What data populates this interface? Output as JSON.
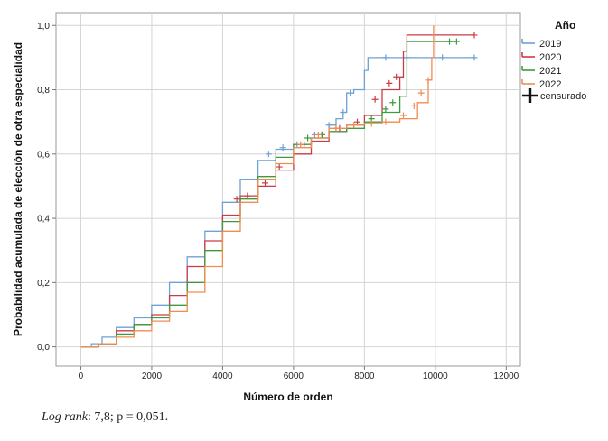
{
  "chart_data": {
    "type": "line",
    "step": true,
    "xlabel": "Número de orden",
    "ylabel": "Probabilidad acumulada de elección de otra especialidad",
    "xlim": [
      -700,
      12400
    ],
    "ylim": [
      -0.06,
      1.04
    ],
    "x_ticks": [
      0,
      2000,
      4000,
      6000,
      8000,
      10000,
      12000
    ],
    "x_tick_labels": [
      "0",
      "2000",
      "4000",
      "6000",
      "8000",
      "10000",
      "12000"
    ],
    "y_ticks": [
      0.0,
      0.2,
      0.4,
      0.6,
      0.8,
      1.0
    ],
    "y_tick_labels": [
      "0,0",
      "0,2",
      "0,4",
      "0,6",
      "0,8",
      "1,0"
    ],
    "grid": true,
    "legend": {
      "title": "Año",
      "placement": "top-right",
      "censored_label": "censurado"
    },
    "series": [
      {
        "name": "2019",
        "color": "#6fa0d6",
        "x": [
          0,
          300,
          600,
          1000,
          1500,
          2000,
          2500,
          3000,
          3500,
          4000,
          4500,
          5000,
          5500,
          6000,
          6500,
          7000,
          7200,
          7400,
          7500,
          7700,
          8000,
          8100,
          11100
        ],
        "y": [
          0.0,
          0.01,
          0.03,
          0.06,
          0.09,
          0.13,
          0.2,
          0.28,
          0.36,
          0.45,
          0.52,
          0.58,
          0.615,
          0.63,
          0.65,
          0.69,
          0.71,
          0.73,
          0.79,
          0.8,
          0.86,
          0.9,
          0.9
        ],
        "censored": [
          {
            "x": 5300,
            "y": 0.6
          },
          {
            "x": 5700,
            "y": 0.62
          },
          {
            "x": 6100,
            "y": 0.63
          },
          {
            "x": 6600,
            "y": 0.66
          },
          {
            "x": 7000,
            "y": 0.69
          },
          {
            "x": 7400,
            "y": 0.73
          },
          {
            "x": 7600,
            "y": 0.79
          },
          {
            "x": 8600,
            "y": 0.9
          },
          {
            "x": 9200,
            "y": 0.9
          },
          {
            "x": 10200,
            "y": 0.9
          },
          {
            "x": 11100,
            "y": 0.9
          }
        ]
      },
      {
        "name": "2020",
        "color": "#cc3b45",
        "x": [
          0,
          500,
          1000,
          1500,
          2000,
          2500,
          3000,
          3500,
          4000,
          4500,
          5000,
          5500,
          6000,
          6500,
          7000,
          7500,
          8000,
          8500,
          9000,
          9100,
          9200,
          11100
        ],
        "y": [
          0.0,
          0.01,
          0.05,
          0.07,
          0.1,
          0.16,
          0.25,
          0.33,
          0.41,
          0.47,
          0.5,
          0.55,
          0.6,
          0.64,
          0.67,
          0.69,
          0.72,
          0.8,
          0.84,
          0.92,
          0.97,
          0.97
        ],
        "censored": [
          {
            "x": 4400,
            "y": 0.46
          },
          {
            "x": 4700,
            "y": 0.47
          },
          {
            "x": 5200,
            "y": 0.51
          },
          {
            "x": 5600,
            "y": 0.56
          },
          {
            "x": 6300,
            "y": 0.63
          },
          {
            "x": 6800,
            "y": 0.66
          },
          {
            "x": 7300,
            "y": 0.68
          },
          {
            "x": 7800,
            "y": 0.7
          },
          {
            "x": 8300,
            "y": 0.77
          },
          {
            "x": 8700,
            "y": 0.82
          },
          {
            "x": 8900,
            "y": 0.84
          },
          {
            "x": 11100,
            "y": 0.97
          }
        ]
      },
      {
        "name": "2021",
        "color": "#3f9a3f",
        "x": [
          0,
          500,
          1000,
          1500,
          2000,
          2500,
          3000,
          3500,
          4000,
          4500,
          5000,
          5500,
          6000,
          6500,
          7000,
          7500,
          8000,
          8500,
          9000,
          9200,
          10600
        ],
        "y": [
          0.0,
          0.01,
          0.04,
          0.07,
          0.09,
          0.13,
          0.2,
          0.3,
          0.39,
          0.46,
          0.53,
          0.59,
          0.63,
          0.65,
          0.67,
          0.68,
          0.7,
          0.73,
          0.78,
          0.95,
          0.95
        ],
        "censored": [
          {
            "x": 6400,
            "y": 0.65
          },
          {
            "x": 6800,
            "y": 0.66
          },
          {
            "x": 7200,
            "y": 0.68
          },
          {
            "x": 7700,
            "y": 0.69
          },
          {
            "x": 8200,
            "y": 0.71
          },
          {
            "x": 8600,
            "y": 0.74
          },
          {
            "x": 8800,
            "y": 0.76
          },
          {
            "x": 10400,
            "y": 0.95
          },
          {
            "x": 10600,
            "y": 0.95
          }
        ]
      },
      {
        "name": "2022",
        "color": "#f08c52",
        "x": [
          0,
          500,
          1000,
          1500,
          2000,
          2500,
          3000,
          3500,
          4000,
          4500,
          5000,
          5500,
          6000,
          6500,
          7000,
          7500,
          8000,
          8500,
          9000,
          9500,
          9800,
          9900,
          9950
        ],
        "y": [
          0.0,
          0.01,
          0.03,
          0.05,
          0.08,
          0.11,
          0.17,
          0.25,
          0.36,
          0.45,
          0.52,
          0.57,
          0.62,
          0.65,
          0.68,
          0.69,
          0.695,
          0.7,
          0.71,
          0.76,
          0.83,
          0.9,
          1.0
        ],
        "censored": [
          {
            "x": 6200,
            "y": 0.63
          },
          {
            "x": 6700,
            "y": 0.66
          },
          {
            "x": 7200,
            "y": 0.68
          },
          {
            "x": 7700,
            "y": 0.69
          },
          {
            "x": 8200,
            "y": 0.695
          },
          {
            "x": 8600,
            "y": 0.7
          },
          {
            "x": 9100,
            "y": 0.72
          },
          {
            "x": 9400,
            "y": 0.75
          },
          {
            "x": 9600,
            "y": 0.79
          },
          {
            "x": 9800,
            "y": 0.83
          }
        ]
      }
    ]
  },
  "caption": {
    "prefix": "Log rank",
    "text": ": 7,8; p = 0,051."
  }
}
